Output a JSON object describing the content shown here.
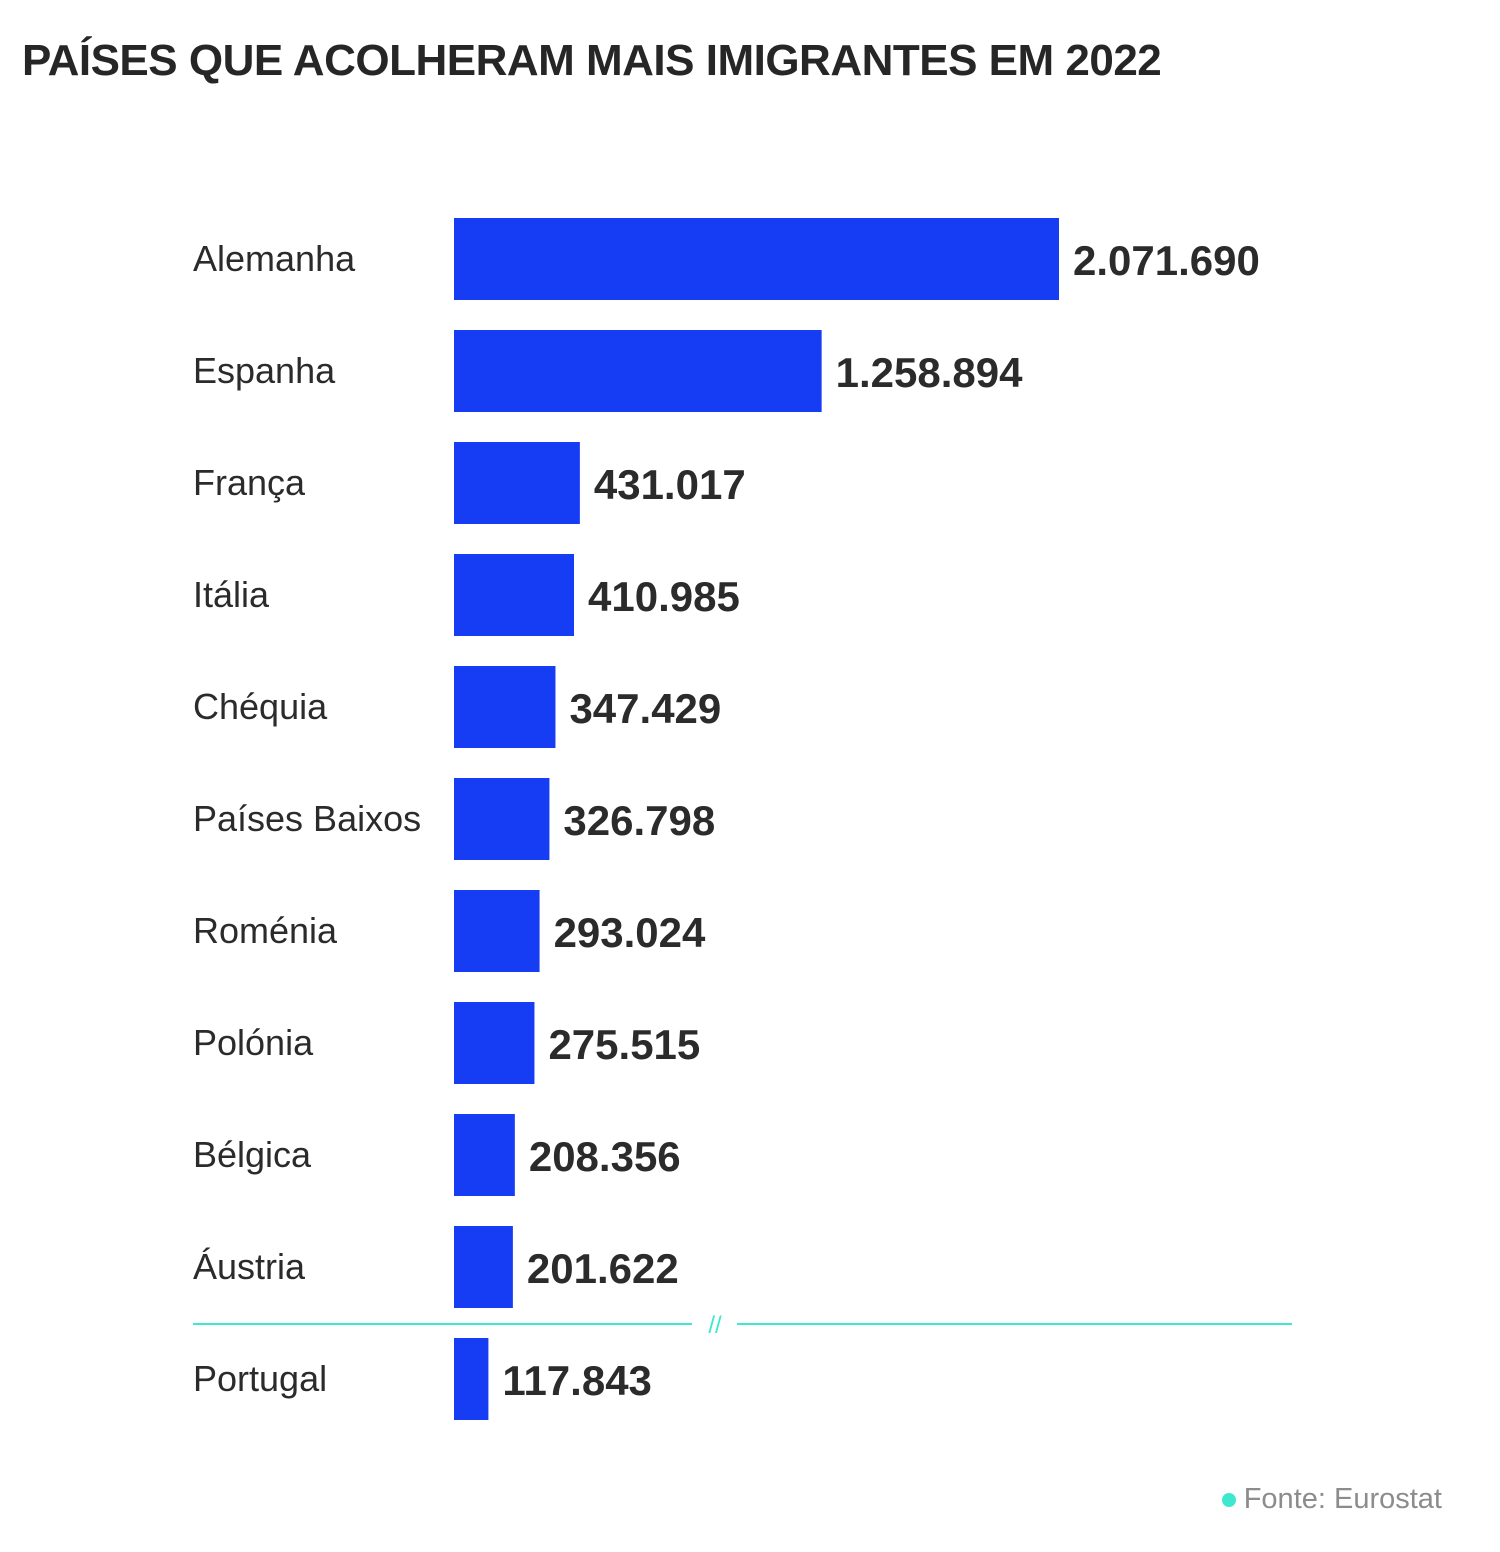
{
  "chart_data": {
    "type": "bar",
    "orientation": "horizontal",
    "title": "PAÍSES QUE ACOLHERAM MAIS IMIGRANTES EM 2022",
    "categories": [
      "Alemanha",
      "Espanha",
      "França",
      "Itália",
      "Chéquia",
      "Países Baixos",
      "Roménia",
      "Polónia",
      "Bélgica",
      "Áustria",
      "Portugal"
    ],
    "values": [
      2071690,
      1258894,
      431017,
      410985,
      347429,
      326798,
      293024,
      275515,
      208356,
      201622,
      117843
    ],
    "value_labels": [
      "2.071.690",
      "1.258.894",
      "431.017",
      "410.985",
      "347.429",
      "326.798",
      "293.024",
      "275.515",
      "208.356",
      "201.622",
      "117.843"
    ],
    "axis_break_marker": "//",
    "grid": false,
    "legend": "none"
  },
  "source": {
    "text": "Fonte: Eurostat"
  },
  "colors": {
    "bar": "#163df3",
    "break_line": "#3ee8cf",
    "source_dot": "#3ee8cf",
    "label_text": "#2b2b2b",
    "value_text": "#2b2b2b"
  }
}
